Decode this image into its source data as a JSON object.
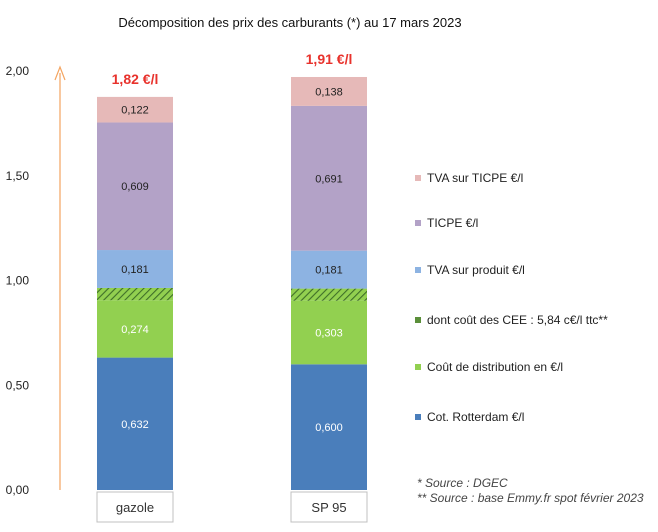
{
  "chart_data": {
    "type": "bar",
    "stacked": true,
    "title": "Décomposition des prix des carburants (*) au 17 mars 2023",
    "categories": [
      "gazole",
      "SP 95"
    ],
    "ylim": [
      0,
      2.0
    ],
    "yticks": [
      "0,00",
      "0,50",
      "1,00",
      "1,50",
      "2,00"
    ],
    "totals": [
      "1,82 €/l",
      "1,91 €/l"
    ],
    "series": [
      {
        "name": "Cot. Rotterdam €/l",
        "values": [
          0.632,
          0.6
        ],
        "labels": [
          "0,632",
          "0,600"
        ],
        "color": "#4a7ebb",
        "text_color": "#ffffff"
      },
      {
        "name": "Coût de distribution en €/l",
        "values": [
          0.274,
          0.303
        ],
        "labels": [
          "0,274",
          "0,303"
        ],
        "color": "#92d050",
        "text_color": "#ffffff"
      },
      {
        "name": "dont coût des CEE : 5,84 c€/l ttc**",
        "values": [
          0.0584,
          0.0584
        ],
        "labels": [
          "",
          ""
        ],
        "color": "#5b8f3a",
        "hatched": true
      },
      {
        "name": "TVA sur produit €/l",
        "values": [
          0.181,
          0.181
        ],
        "labels": [
          "0,181",
          "0,181"
        ],
        "color": "#8db3e2",
        "text_color": "#222222"
      },
      {
        "name": "TICPE €/l",
        "values": [
          0.609,
          0.691
        ],
        "labels": [
          "0,609",
          "0,691"
        ],
        "color": "#b3a2c7",
        "text_color": "#222222"
      },
      {
        "name": "TVA sur TICPE €/l",
        "values": [
          0.122,
          0.138
        ],
        "labels": [
          "0,122",
          "0,138"
        ],
        "color": "#e6b9b8",
        "text_color": "#222222"
      }
    ],
    "legend_order": [
      5,
      4,
      3,
      2,
      1,
      0
    ],
    "legend_position": "right",
    "annotations": [
      "* Source : DGEC",
      "** Source : base Emmy.fr spot février 2023"
    ],
    "arrow_color": "#f4a460"
  }
}
